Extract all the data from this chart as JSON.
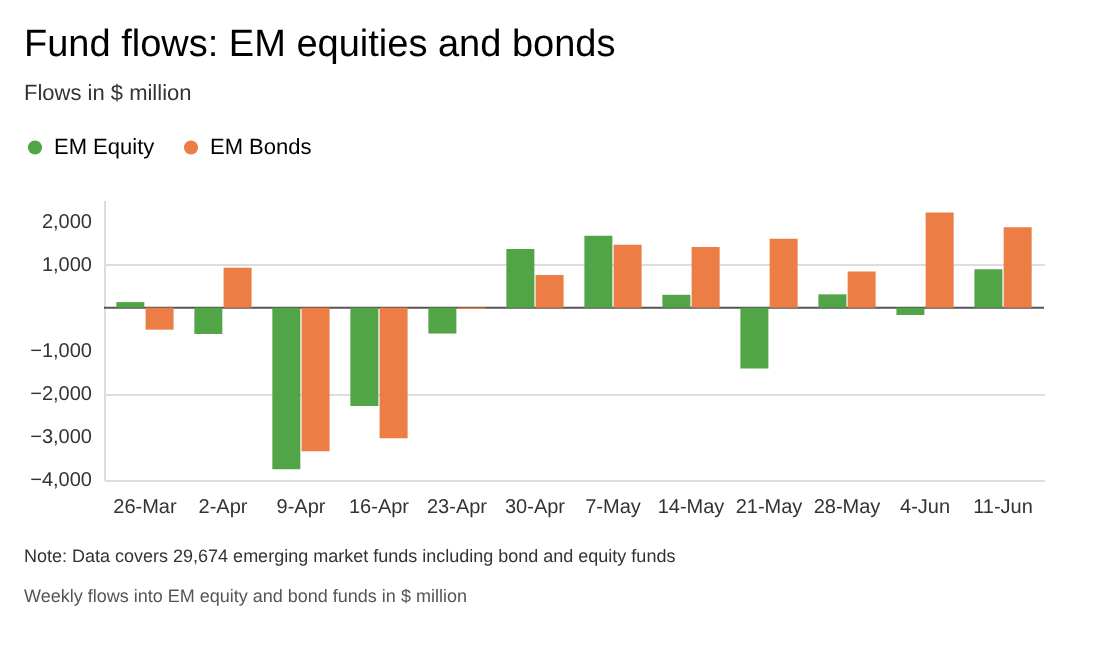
{
  "chart_data": {
    "type": "bar",
    "title": "Fund flows: EM equities and bonds",
    "subtitle": "Flows in $ million",
    "categories": [
      "26-Mar",
      "2-Apr",
      "9-Apr",
      "16-Apr",
      "23-Apr",
      "30-Apr",
      "7-May",
      "14-May",
      "21-May",
      "28-May",
      "4-Jun",
      "11-Jun"
    ],
    "series": [
      {
        "name": "EM Equity",
        "color": "#52a547",
        "values": [
          130,
          -610,
          -3750,
          -2280,
          -600,
          1360,
          1670,
          300,
          -1410,
          310,
          -170,
          890
        ]
      },
      {
        "name": "EM Bonds",
        "color": "#ec7d44",
        "values": [
          -510,
          930,
          -3330,
          -3030,
          -30,
          760,
          1460,
          1410,
          1600,
          840,
          2210,
          1870
        ]
      }
    ],
    "ylim": [
      -4000,
      2500
    ],
    "yticks": [
      {
        "value": -4000,
        "label": "−4,000"
      },
      {
        "value": -3000,
        "label": "−3,000"
      },
      {
        "value": -2000,
        "label": "−2,000"
      },
      {
        "value": -1000,
        "label": "−1,000"
      },
      {
        "value": 1000,
        "label": "1,000"
      },
      {
        "value": 2000,
        "label": "2,000"
      }
    ],
    "grid": "y",
    "legend": "top left",
    "ref_lines": [
      {
        "axis": "y",
        "value": 0,
        "color": "#555555"
      }
    ],
    "annotations": [
      "Note: Data covers 29,674 emerging market funds including bond and equity funds",
      "Weekly flows into EM equity and bond funds in $ million"
    ]
  }
}
